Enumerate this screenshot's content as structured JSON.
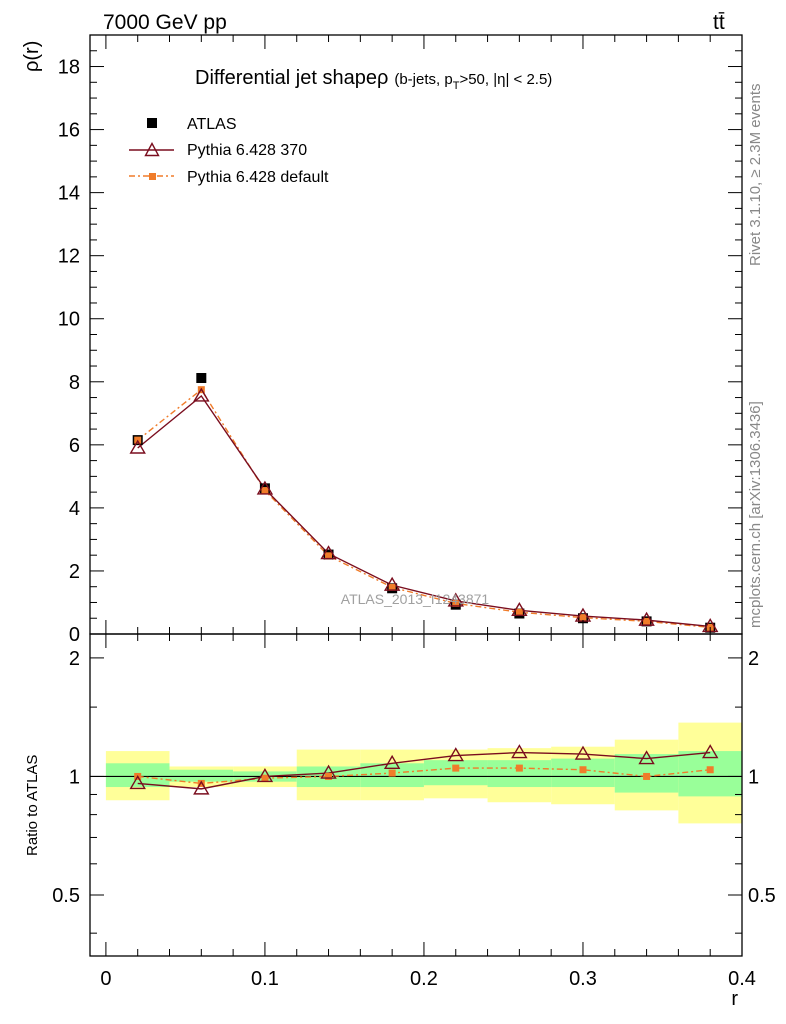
{
  "header": {
    "left": "7000 GeV pp",
    "right": "tt̄"
  },
  "side_labels": {
    "rivet": "Rivet 3.1.10, ≥ 2.3M events",
    "mcplots": "mcplots.cern.ch [arXiv:1306.3436]"
  },
  "watermark": "ATLAS_2013_I1243871",
  "title": {
    "main": "Differential jet shapeρ",
    "sub": "(b-jets, p",
    "sub_T": "T",
    "sub_rest": ">50, |η| < 2.5)"
  },
  "colors": {
    "data": "#000000",
    "pythia370": "#7a0d1e",
    "pythia_default": "#f07c2a",
    "band_green": "#99ff99",
    "band_yellow": "#ffff99"
  },
  "chart_data": [
    {
      "type": "line",
      "ylabel": "ρ(r)",
      "ylim": [
        0,
        19
      ],
      "xlim": [
        -0.01,
        0.4
      ],
      "yticks": [
        "0",
        "2",
        "4",
        "6",
        "8",
        "10",
        "12",
        "14",
        "16",
        "18"
      ],
      "legend_position": "top-left",
      "x": [
        0.02,
        0.06,
        0.1,
        0.14,
        0.18,
        0.22,
        0.26,
        0.3,
        0.34,
        0.38
      ],
      "series": [
        {
          "name": "ATLAS",
          "marker": "square",
          "values": [
            6.15,
            8.12,
            4.62,
            2.52,
            1.45,
            0.93,
            0.65,
            0.5,
            0.4,
            0.2
          ]
        },
        {
          "name": "Pythia 6.428 370",
          "marker": "triangle",
          "values": [
            5.9,
            7.55,
            4.6,
            2.55,
            1.55,
            1.05,
            0.75,
            0.57,
            0.44,
            0.24
          ]
        },
        {
          "name": "Pythia 6.428 default",
          "marker": "small-square",
          "values": [
            6.15,
            7.75,
            4.55,
            2.48,
            1.48,
            0.97,
            0.69,
            0.52,
            0.4,
            0.21
          ]
        }
      ]
    },
    {
      "type": "line",
      "ylabel": "Ratio to ATLAS",
      "xlabel": "r",
      "ylim": [
        0.35,
        2.3
      ],
      "xlim": [
        -0.01,
        0.4
      ],
      "yticks": [
        "0.5",
        "1",
        "2"
      ],
      "xticks": [
        "0",
        "0.1",
        "0.2",
        "0.3",
        "0.4"
      ],
      "x": [
        0.02,
        0.06,
        0.1,
        0.14,
        0.18,
        0.22,
        0.26,
        0.3,
        0.34,
        0.38
      ],
      "x_edges": [
        0.0,
        0.04,
        0.08,
        0.12,
        0.16,
        0.2,
        0.24,
        0.28,
        0.32,
        0.36,
        0.4
      ],
      "bands": {
        "green_low": [
          0.94,
          0.97,
          0.97,
          0.94,
          0.94,
          0.95,
          0.94,
          0.94,
          0.91,
          0.89
        ],
        "green_high": [
          1.08,
          1.04,
          1.03,
          1.06,
          1.08,
          1.1,
          1.1,
          1.11,
          1.14,
          1.16
        ],
        "yellow_low": [
          0.87,
          0.94,
          0.94,
          0.87,
          0.87,
          0.88,
          0.86,
          0.85,
          0.82,
          0.76
        ],
        "yellow_high": [
          1.16,
          1.06,
          1.06,
          1.17,
          1.17,
          1.17,
          1.18,
          1.19,
          1.24,
          1.37
        ]
      },
      "series": [
        {
          "name": "Pythia 6.428 370",
          "values": [
            0.96,
            0.93,
            1.0,
            1.02,
            1.08,
            1.13,
            1.15,
            1.14,
            1.11,
            1.15
          ]
        },
        {
          "name": "Pythia 6.428 default",
          "values": [
            1.0,
            0.96,
            0.99,
            1.0,
            1.02,
            1.05,
            1.05,
            1.04,
            1.0,
            1.04
          ]
        }
      ]
    }
  ]
}
